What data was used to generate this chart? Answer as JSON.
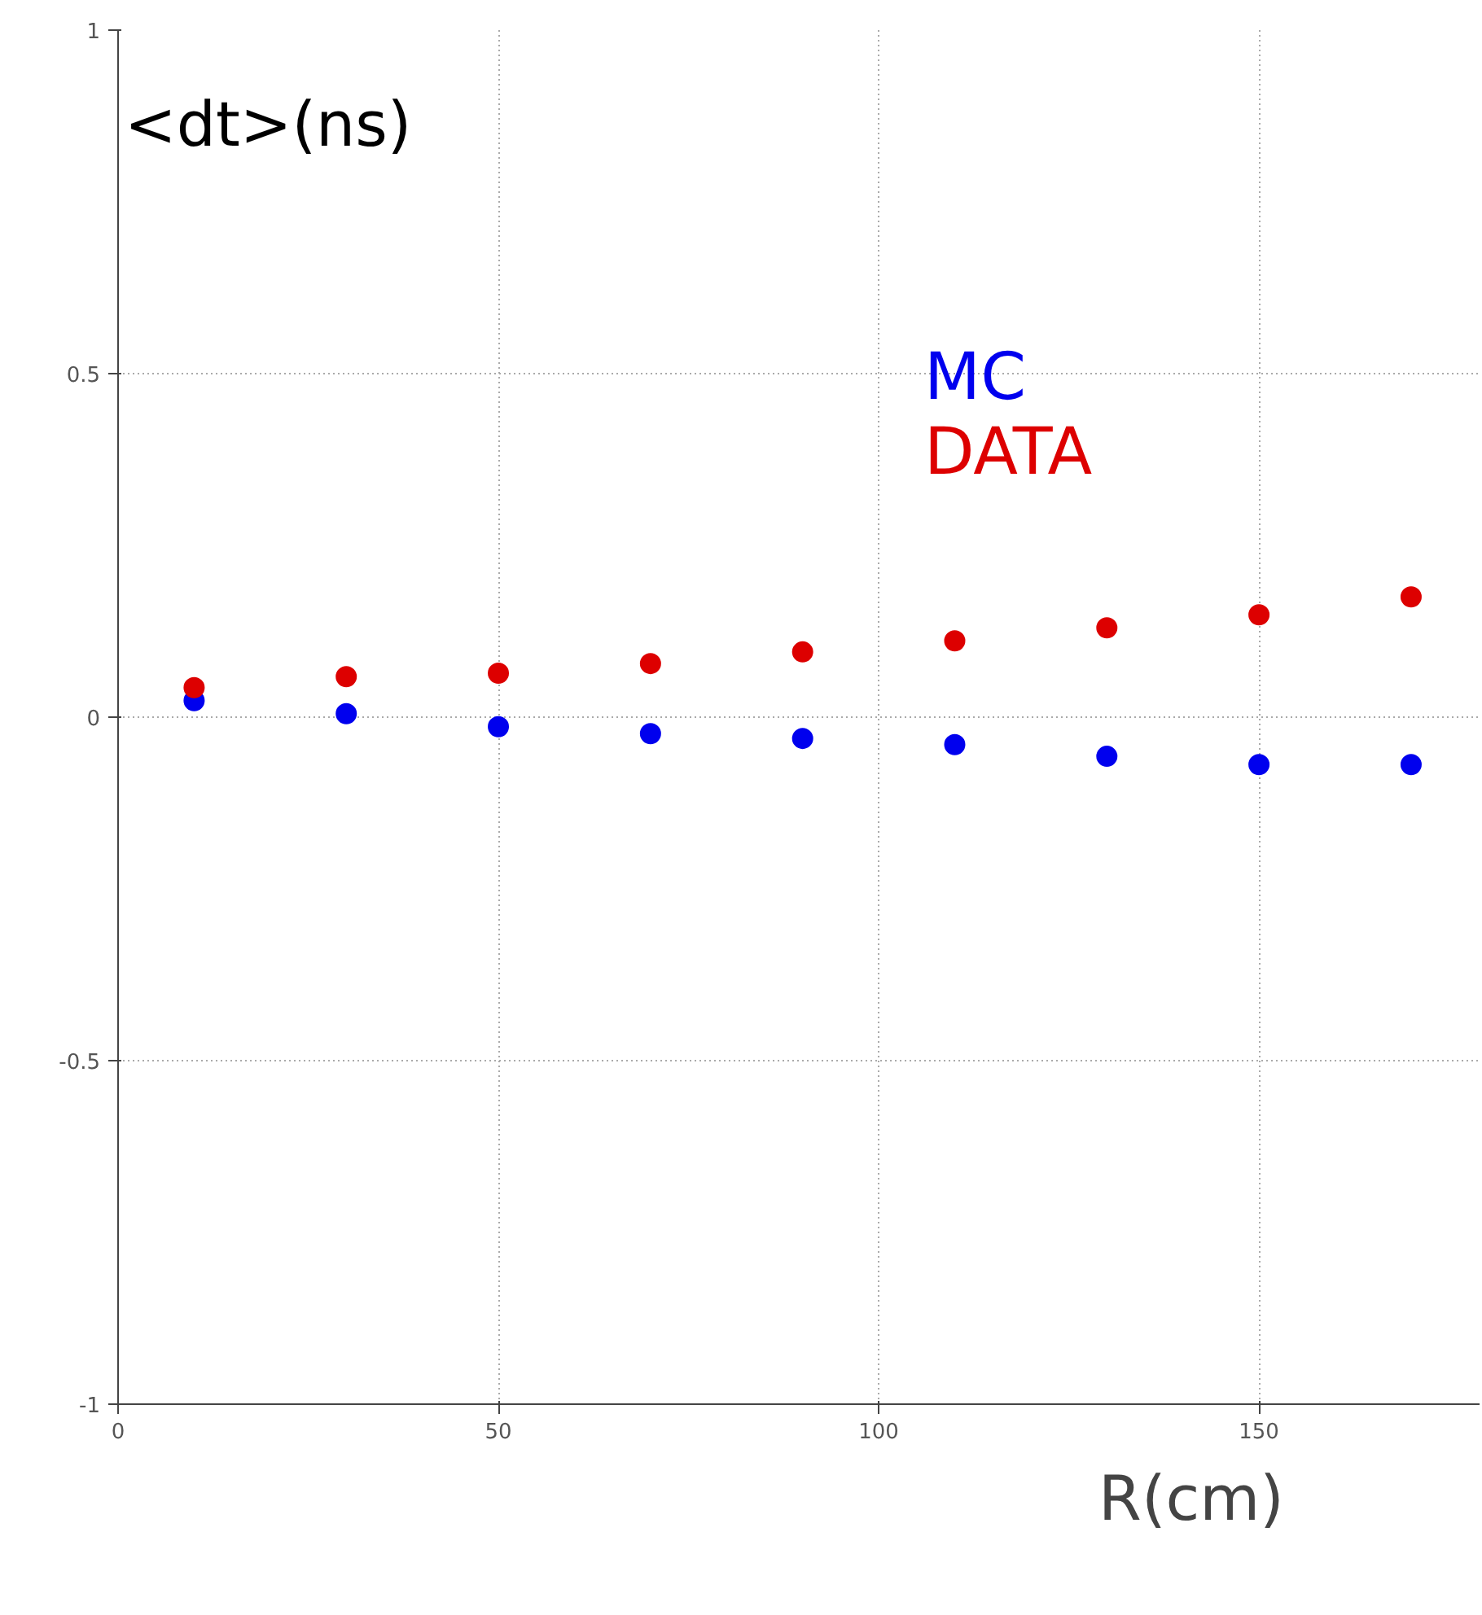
{
  "chart_data": {
    "type": "scatter",
    "xlabel": "R(cm)",
    "ylabel": "<dt>(ns)",
    "x": [
      10,
      30,
      50,
      70,
      90,
      110,
      130,
      150,
      170
    ],
    "series": [
      {
        "name": "MC",
        "color": "#0000ee",
        "values": [
          0.024,
          0.005,
          -0.014,
          -0.024,
          -0.031,
          -0.04,
          -0.057,
          -0.069,
          -0.069
        ]
      },
      {
        "name": "DATA",
        "color": "#dd0000",
        "values": [
          0.043,
          0.059,
          0.064,
          0.078,
          0.095,
          0.111,
          0.13,
          0.149,
          0.175
        ]
      }
    ],
    "xlim": [
      0,
      179
    ],
    "ylim": [
      -1,
      1
    ],
    "xticks": [
      0,
      50,
      100,
      150
    ],
    "yticks": [
      -1,
      -0.5,
      0,
      0.5,
      1
    ],
    "grid": true,
    "legend": "top right",
    "marker": "circle"
  }
}
